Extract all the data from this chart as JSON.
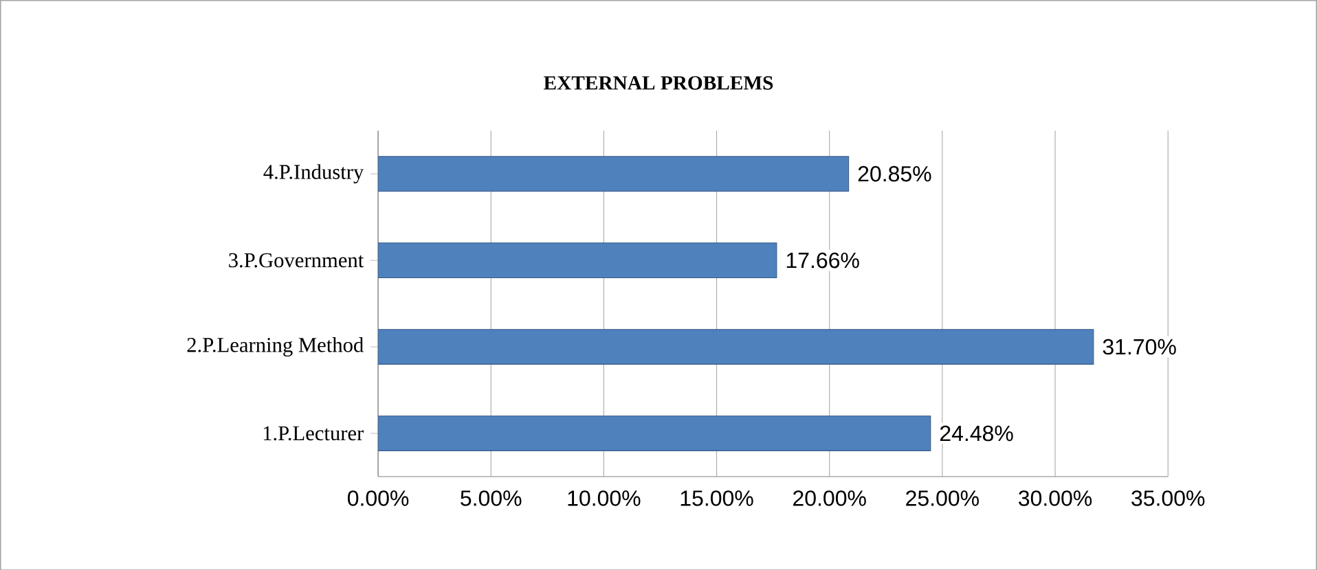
{
  "chart_data": {
    "type": "bar",
    "orientation": "horizontal",
    "title": "EXTERNAL PROBLEMS",
    "categories": [
      "4.P.Industry",
      "3.P.Government",
      "2.P.Learning Method",
      "1.P.Lecturer"
    ],
    "values": [
      20.85,
      17.66,
      31.7,
      24.48
    ],
    "value_labels": [
      "20.85%",
      "17.66%",
      "31.70%",
      "24.48%"
    ],
    "color": "#4f81bd",
    "xlim": [
      0,
      35
    ],
    "xticks": [
      {
        "value": 0,
        "label": "0.00%"
      },
      {
        "value": 5,
        "label": "5.00%"
      },
      {
        "value": 10,
        "label": "10.00%"
      },
      {
        "value": 15,
        "label": "15.00%"
      },
      {
        "value": 20,
        "label": "20.00%"
      },
      {
        "value": 25,
        "label": "25.00%"
      },
      {
        "value": 30,
        "label": "30.00%"
      },
      {
        "value": 35,
        "label": "35.00%"
      }
    ],
    "grid": "x"
  }
}
